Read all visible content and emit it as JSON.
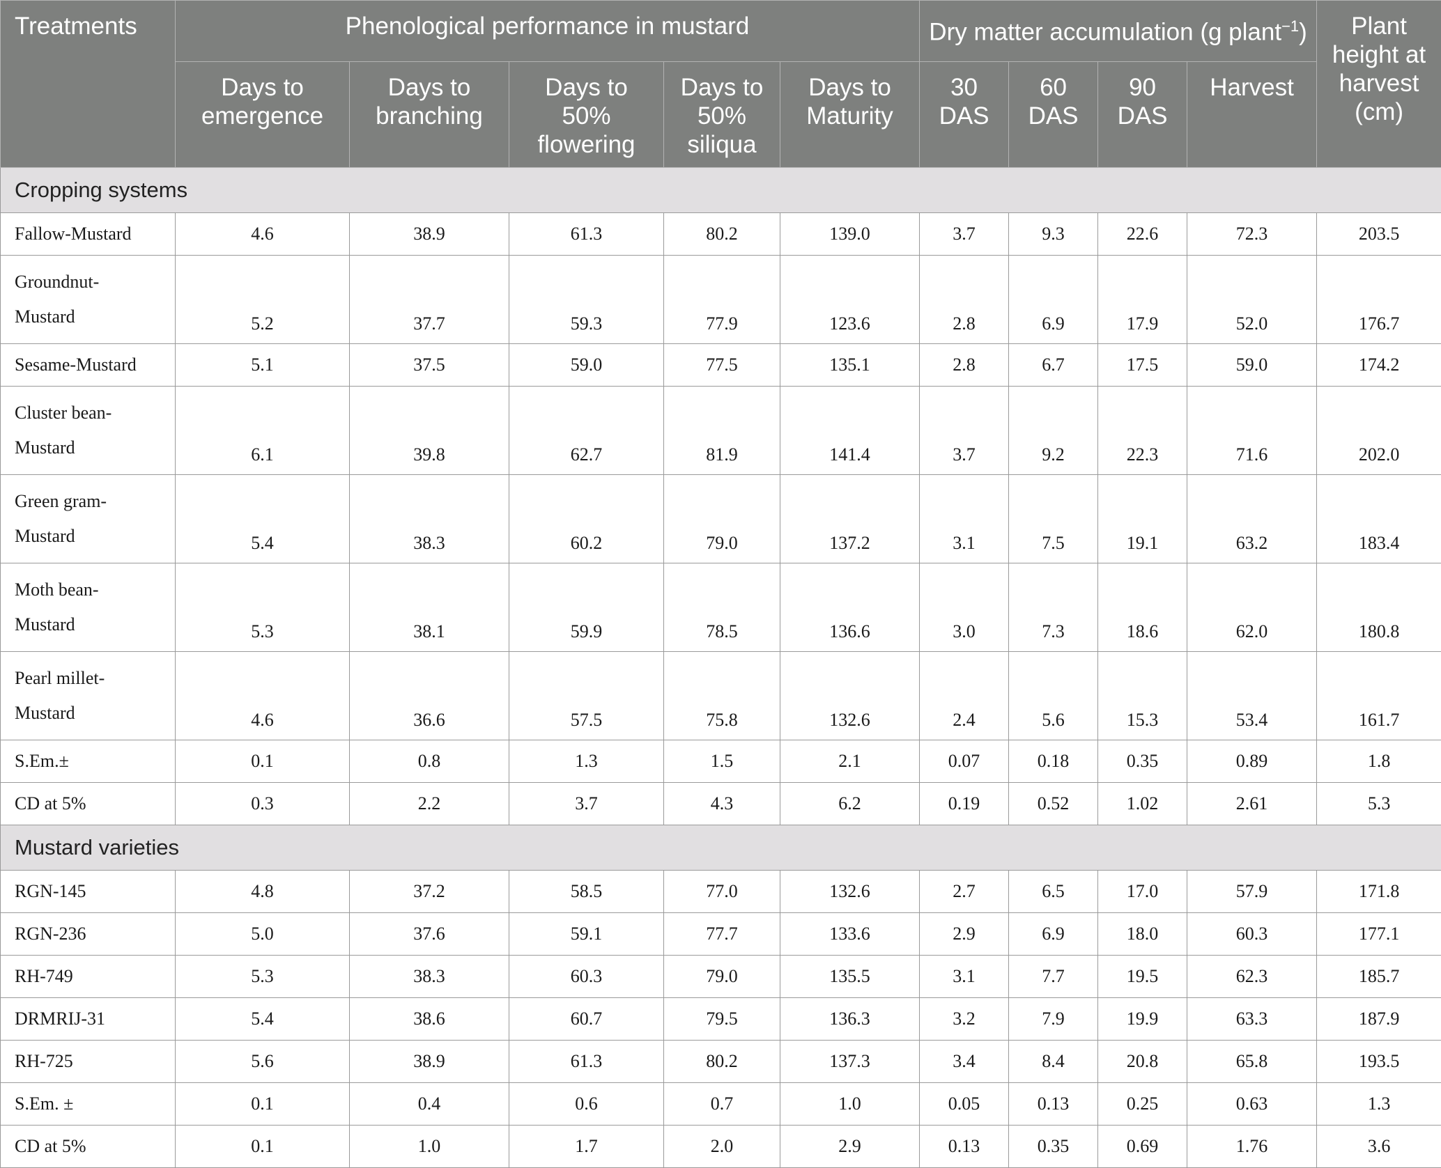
{
  "headers": {
    "treatments": "Treatments",
    "phenological_group": "Phenological performance in mustard",
    "dry_matter_group_pre": "Dry matter accumulation (g plant",
    "dry_matter_sup": "−1",
    "dry_matter_group_post": ")",
    "plant_height": "Plant height at harvest (cm)",
    "sub": {
      "days_emergence": "Days to emergence",
      "days_branching": "Days to branching",
      "days_flowering": "Days to 50% flowering",
      "days_siliqua": "Days to 50% siliqua",
      "days_maturity": "Days to Maturity",
      "das30": "30 DAS",
      "das60": "60 DAS",
      "das90": "90 DAS",
      "harvest": "Harvest"
    }
  },
  "sections": [
    {
      "title": "Cropping systems",
      "rows": [
        {
          "line1": "Fallow-Mustard",
          "line2": "",
          "values": [
            "4.6",
            "38.9",
            "61.3",
            "80.2",
            "139.0",
            "3.7",
            "9.3",
            "22.6",
            "72.3",
            "203.5"
          ]
        },
        {
          "line1": "Groundnut-",
          "line2": "Mustard",
          "values": [
            "5.2",
            "37.7",
            "59.3",
            "77.9",
            "123.6",
            "2.8",
            "6.9",
            "17.9",
            "52.0",
            "176.7"
          ]
        },
        {
          "line1": "Sesame-Mustard",
          "line2": "",
          "values": [
            "5.1",
            "37.5",
            "59.0",
            "77.5",
            "135.1",
            "2.8",
            "6.7",
            "17.5",
            "59.0",
            "174.2"
          ]
        },
        {
          "line1": "Cluster bean-",
          "line2": "Mustard",
          "values": [
            "6.1",
            "39.8",
            "62.7",
            "81.9",
            "141.4",
            "3.7",
            "9.2",
            "22.3",
            "71.6",
            "202.0"
          ]
        },
        {
          "line1": "Green gram-",
          "line2": "Mustard",
          "values": [
            "5.4",
            "38.3",
            "60.2",
            "79.0",
            "137.2",
            "3.1",
            "7.5",
            "19.1",
            "63.2",
            "183.4"
          ]
        },
        {
          "line1": "Moth bean-",
          "line2": "Mustard",
          "values": [
            "5.3",
            "38.1",
            "59.9",
            "78.5",
            "136.6",
            "3.0",
            "7.3",
            "18.6",
            "62.0",
            "180.8"
          ]
        },
        {
          "line1": "Pearl millet-",
          "line2": "Mustard",
          "values": [
            "4.6",
            "36.6",
            "57.5",
            "75.8",
            "132.6",
            "2.4",
            "5.6",
            "15.3",
            "53.4",
            "161.7"
          ]
        },
        {
          "line1": "S.Em.±",
          "line2": "",
          "values": [
            "0.1",
            "0.8",
            "1.3",
            "1.5",
            "2.1",
            "0.07",
            "0.18",
            "0.35",
            "0.89",
            "1.8"
          ]
        },
        {
          "line1": "CD at 5%",
          "line2": "",
          "values": [
            "0.3",
            "2.2",
            "3.7",
            "4.3",
            "6.2",
            "0.19",
            "0.52",
            "1.02",
            "2.61",
            "5.3"
          ]
        }
      ]
    },
    {
      "title": "Mustard varieties",
      "rows": [
        {
          "line1": "RGN-145",
          "line2": "",
          "values": [
            "4.8",
            "37.2",
            "58.5",
            "77.0",
            "132.6",
            "2.7",
            "6.5",
            "17.0",
            "57.9",
            "171.8"
          ]
        },
        {
          "line1": "RGN-236",
          "line2": "",
          "values": [
            "5.0",
            "37.6",
            "59.1",
            "77.7",
            "133.6",
            "2.9",
            "6.9",
            "18.0",
            "60.3",
            "177.1"
          ]
        },
        {
          "line1": "RH-749",
          "line2": "",
          "values": [
            "5.3",
            "38.3",
            "60.3",
            "79.0",
            "135.5",
            "3.1",
            "7.7",
            "19.5",
            "62.3",
            "185.7"
          ]
        },
        {
          "line1": "DRMRIJ-31",
          "line2": "",
          "values": [
            "5.4",
            "38.6",
            "60.7",
            "79.5",
            "136.3",
            "3.2",
            "7.9",
            "19.9",
            "63.3",
            "187.9"
          ]
        },
        {
          "line1": "RH-725",
          "line2": "",
          "values": [
            "5.6",
            "38.9",
            "61.3",
            "80.2",
            "137.3",
            "3.4",
            "8.4",
            "20.8",
            "65.8",
            "193.5"
          ]
        },
        {
          "line1": "S.Em. ±",
          "line2": "",
          "values": [
            "0.1",
            "0.4",
            "0.6",
            "0.7",
            "1.0",
            "0.05",
            "0.13",
            "0.25",
            "0.63",
            "1.3"
          ]
        },
        {
          "line1": "CD at 5%",
          "line2": "",
          "values": [
            "0.1",
            "1.0",
            "1.7",
            "2.0",
            "2.9",
            "0.13",
            "0.35",
            "0.69",
            "1.76",
            "3.6"
          ]
        }
      ]
    }
  ]
}
